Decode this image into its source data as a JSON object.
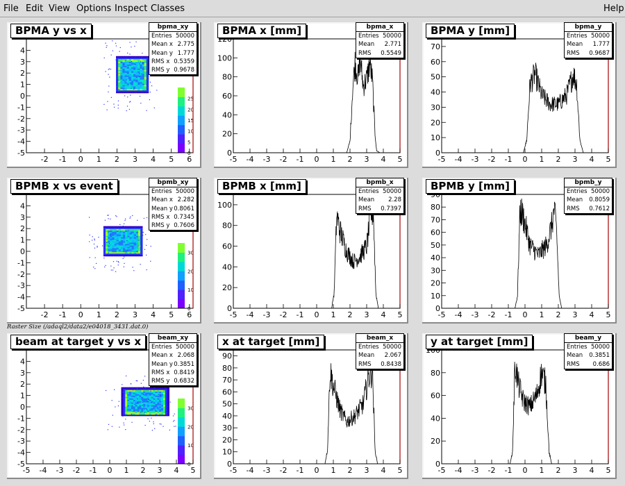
{
  "menu": [
    "File",
    "Edit",
    "View",
    "Options",
    "Inspect",
    "Classes"
  ],
  "help": "Help",
  "caption": "Raster Size (/adaql2/data2/e04018_3431.dat.0)",
  "colors": {
    "hist": "#000000",
    "frame_right": "#a40000"
  },
  "chart_data": [
    {
      "type": "heatmap",
      "name": "bpma_xy",
      "title": "BPMA y vs x",
      "xlim": [
        -3,
        6.2
      ],
      "ylim": [
        -5,
        5
      ],
      "xticks": [
        -2,
        -1,
        0,
        1,
        2,
        3,
        4,
        5,
        6
      ],
      "yticks": [
        -5,
        -4,
        -3,
        -2,
        -1,
        0,
        1,
        2,
        3,
        4
      ],
      "center": [
        2.775,
        1.777
      ],
      "halfwidth": [
        0.95,
        1.65
      ],
      "colorbar_ticks": [
        0,
        5,
        10,
        15,
        20,
        25
      ],
      "stats": [
        [
          "Entries",
          "50000"
        ],
        [
          "Mean x",
          "2.775"
        ],
        [
          "Mean y",
          "1.777"
        ],
        [
          "RMS x",
          "0.5359"
        ],
        [
          "RMS y",
          "0.9678"
        ]
      ]
    },
    {
      "type": "line",
      "name": "bpma_x",
      "title": "BPMA x [mm]",
      "xlim": [
        -5,
        5
      ],
      "ylim": [
        0,
        120
      ],
      "xticks": [
        -5,
        -4,
        -3,
        -2,
        -1,
        0,
        1,
        2,
        3,
        4,
        5
      ],
      "yticks": [
        0,
        20,
        40,
        60,
        80,
        100,
        120
      ],
      "x": [
        -5,
        1.8,
        2.0,
        2.15,
        2.3,
        2.5,
        2.6,
        2.8,
        3.0,
        3.2,
        3.35,
        3.5,
        3.6,
        3.8,
        5
      ],
      "y": [
        0,
        0,
        12,
        65,
        95,
        78,
        100,
        70,
        78,
        95,
        75,
        20,
        2,
        0,
        0
      ],
      "stats": [
        [
          "Entries",
          "50000"
        ],
        [
          "Mean",
          "2.771"
        ],
        [
          "RMS",
          "0.5549"
        ]
      ]
    },
    {
      "type": "line",
      "name": "bpma_y",
      "title": "BPMA y [mm]",
      "xlim": [
        -5,
        5
      ],
      "ylim": [
        0,
        75
      ],
      "xticks": [
        -5,
        -4,
        -3,
        -2,
        -1,
        0,
        1,
        2,
        3,
        4,
        5
      ],
      "yticks": [
        0,
        10,
        20,
        30,
        40,
        50,
        60,
        70
      ],
      "x": [
        -5,
        -0.1,
        0.1,
        0.3,
        0.6,
        1.0,
        1.5,
        2.0,
        2.5,
        2.9,
        3.1,
        3.3,
        3.5,
        5
      ],
      "y": [
        0,
        0,
        8,
        45,
        52,
        38,
        32,
        32,
        38,
        52,
        45,
        8,
        0,
        0
      ],
      "stats": [
        [
          "Entries",
          "50000"
        ],
        [
          "Mean",
          "1.777"
        ],
        [
          "RMS",
          "0.9687"
        ]
      ]
    },
    {
      "type": "heatmap",
      "name": "bpmb_xy",
      "title": "BPMB x vs event",
      "xlim": [
        -3,
        6.2
      ],
      "ylim": [
        -5,
        5
      ],
      "xticks": [
        -2,
        -1,
        0,
        1,
        2,
        3,
        4,
        5,
        6
      ],
      "yticks": [
        -5,
        -4,
        -3,
        -2,
        -1,
        0,
        1,
        2,
        3,
        4
      ],
      "center": [
        2.282,
        0.8061
      ],
      "halfwidth": [
        1.15,
        1.35
      ],
      "colorbar_ticks": [
        0,
        10,
        20,
        30
      ],
      "stats": [
        [
          "Entries",
          "50000"
        ],
        [
          "Mean x",
          "2.282"
        ],
        [
          "Mean y",
          "0.8061"
        ],
        [
          "RMS x",
          "0.7345"
        ],
        [
          "RMS y",
          "0.7606"
        ]
      ]
    },
    {
      "type": "line",
      "name": "bpmb_x",
      "title": "BPMB x [mm]",
      "xlim": [
        -5,
        5
      ],
      "ylim": [
        0,
        110
      ],
      "xticks": [
        -5,
        -4,
        -3,
        -2,
        -1,
        0,
        1,
        2,
        3,
        4,
        5
      ],
      "yticks": [
        0,
        20,
        40,
        60,
        80,
        100
      ],
      "x": [
        -5,
        0.9,
        1.05,
        1.2,
        1.4,
        1.8,
        2.2,
        2.6,
        3.0,
        3.25,
        3.4,
        3.55,
        3.7,
        5
      ],
      "y": [
        0,
        0,
        15,
        90,
        75,
        55,
        45,
        50,
        60,
        90,
        95,
        15,
        0,
        0
      ],
      "stats": [
        [
          "Entries",
          "50000"
        ],
        [
          "Mean",
          "2.28"
        ],
        [
          "RMS",
          "0.7397"
        ]
      ]
    },
    {
      "type": "line",
      "name": "bpmb_y",
      "title": "BPMB y [mm]",
      "xlim": [
        -5,
        5
      ],
      "ylim": [
        0,
        90
      ],
      "xticks": [
        -5,
        -4,
        -3,
        -2,
        -1,
        0,
        1,
        2,
        3,
        4,
        5
      ],
      "yticks": [
        0,
        10,
        20,
        30,
        40,
        50,
        60,
        70,
        80,
        90
      ],
      "x": [
        -5,
        -0.6,
        -0.45,
        -0.3,
        -0.1,
        0.3,
        0.8,
        1.3,
        1.6,
        1.75,
        1.9,
        2.05,
        2.2,
        5
      ],
      "y": [
        0,
        0,
        10,
        78,
        72,
        50,
        42,
        50,
        65,
        78,
        60,
        10,
        0,
        0
      ],
      "stats": [
        [
          "Entries",
          "50000"
        ],
        [
          "Mean",
          "0.8059"
        ],
        [
          "RMS",
          "0.7612"
        ]
      ]
    },
    {
      "type": "heatmap",
      "name": "beam_xy",
      "title": "beam at target y vs x",
      "xlim": [
        -5,
        5
      ],
      "ylim": [
        -5,
        5
      ],
      "xticks": [
        -5,
        -4,
        -3,
        -2,
        -1,
        0,
        1,
        2,
        3,
        4,
        5
      ],
      "yticks": [
        -5,
        -4,
        -3,
        -2,
        -1,
        0,
        1,
        2,
        3,
        4
      ],
      "center": [
        2.068,
        0.3851
      ],
      "halfwidth": [
        1.5,
        1.3
      ],
      "colorbar_ticks": [
        0,
        10,
        20,
        30
      ],
      "stats": [
        [
          "Entries",
          "50000"
        ],
        [
          "Mean x",
          "2.068"
        ],
        [
          "Mean y",
          "0.3851"
        ],
        [
          "RMS x",
          "0.8419"
        ],
        [
          "RMS y",
          "0.6832"
        ]
      ]
    },
    {
      "type": "line",
      "name": "beam_x",
      "title": "x at target [mm]",
      "xlim": [
        -5,
        5
      ],
      "ylim": [
        0,
        95
      ],
      "xticks": [
        -5,
        -4,
        -3,
        -2,
        -1,
        0,
        1,
        2,
        3,
        4,
        5
      ],
      "yticks": [
        0,
        10,
        20,
        30,
        40,
        50,
        60,
        70,
        80,
        90
      ],
      "x": [
        -5,
        0.5,
        0.65,
        0.8,
        1.0,
        1.4,
        1.8,
        2.3,
        2.8,
        3.1,
        3.35,
        3.5,
        3.65,
        5
      ],
      "y": [
        0,
        0,
        12,
        78,
        65,
        45,
        35,
        40,
        50,
        72,
        78,
        12,
        0,
        0
      ],
      "stats": [
        [
          "Entries",
          "50000"
        ],
        [
          "Mean",
          "2.067"
        ],
        [
          "RMS",
          "0.8438"
        ]
      ]
    },
    {
      "type": "line",
      "name": "beam_y",
      "title": "y at target [mm]",
      "xlim": [
        -5,
        5
      ],
      "ylim": [
        0,
        100
      ],
      "xticks": [
        -5,
        -4,
        -3,
        -2,
        -1,
        0,
        1,
        2,
        3,
        4,
        5
      ],
      "yticks": [
        0,
        20,
        40,
        60,
        80,
        100
      ],
      "x": [
        -5,
        -0.9,
        -0.75,
        -0.6,
        -0.4,
        -0.1,
        0.3,
        0.7,
        1.0,
        1.25,
        1.45,
        1.6,
        5
      ],
      "y": [
        0,
        0,
        10,
        88,
        70,
        55,
        50,
        60,
        80,
        70,
        10,
        0,
        0
      ],
      "stats": [
        [
          "Entries",
          "50000"
        ],
        [
          "Mean",
          "0.3851"
        ],
        [
          "RMS",
          "0.686"
        ]
      ]
    }
  ]
}
